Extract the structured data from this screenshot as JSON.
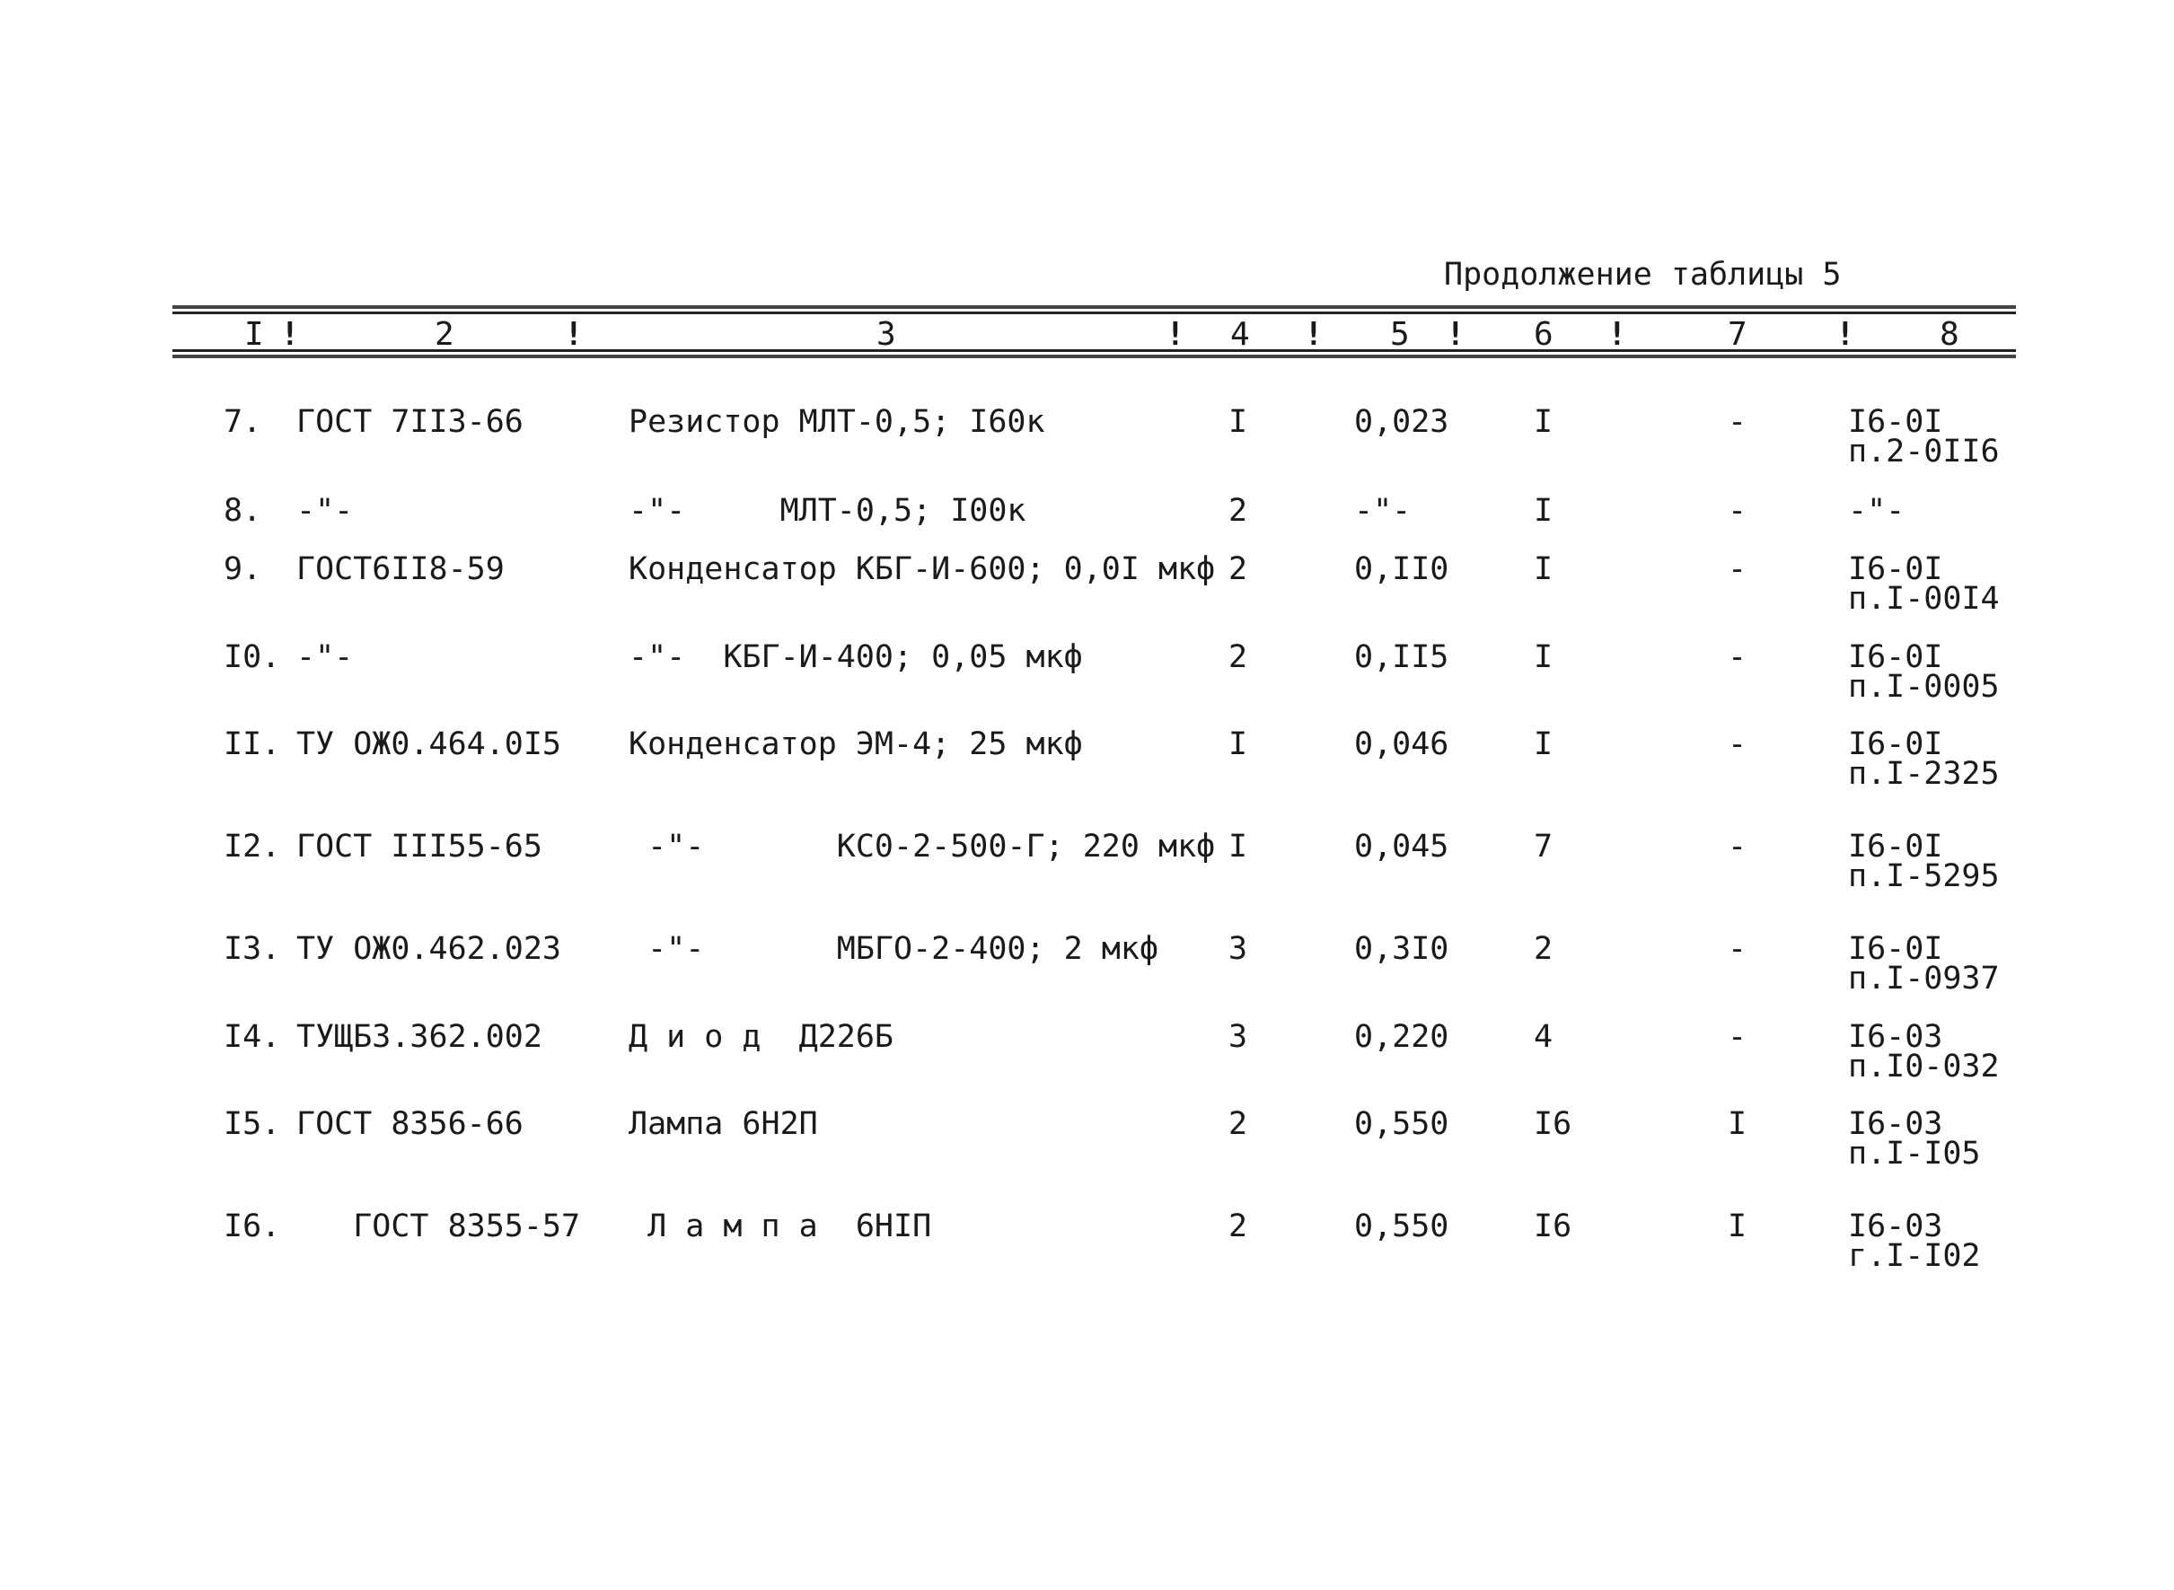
{
  "caption": "Продолжение таблицы 5",
  "header": {
    "columns": [
      "I",
      "2",
      "3",
      "4",
      "5",
      "6",
      "7",
      "8"
    ],
    "separator": "!"
  },
  "rows": [
    {
      "n": "7.",
      "doc": "ГОСТ 7II3-66",
      "name": "Резистор МЛТ-0,5; I60к",
      "qty": "I",
      "mass": "0,023",
      "c6": "I",
      "c7": "-",
      "ref1": "I6-0I",
      "ref2": "п.2-0II6"
    },
    {
      "n": "8.",
      "doc": "-\"-",
      "name": "-\"-     МЛТ-0,5; I00к",
      "qty": "2",
      "mass": "-\"-",
      "c6": "I",
      "c7": "-",
      "ref1": "-\"-",
      "ref2": ""
    },
    {
      "n": "9.",
      "doc": "ГОСТ6II8-59",
      "name": "Конденсатор КБГ-И-600; 0,0I мкф",
      "qty": "2",
      "mass": "0,II0",
      "c6": "I",
      "c7": "-",
      "ref1": "I6-0I",
      "ref2": "п.I-00I4"
    },
    {
      "n": "I0.",
      "doc": "-\"-",
      "name": "-\"-  КБГ-И-400; 0,05 мкф",
      "qty": "2",
      "mass": "0,II5",
      "c6": "I",
      "c7": "-",
      "ref1": "I6-0I",
      "ref2": "п.I-0005"
    },
    {
      "n": "II.",
      "doc": "ТУ ОЖ0.464.0I5",
      "name": "Конденсатор ЭМ-4; 25 мкф",
      "qty": "I",
      "mass": "0,046",
      "c6": "I",
      "c7": "-",
      "ref1": "I6-0I",
      "ref2": "п.I-2325"
    },
    {
      "n": "I2.",
      "doc": "ГОСТ III55-65",
      "name": " -\"-       КС0-2-500-Г; 220 мкф",
      "qty": "I",
      "mass": "0,045",
      "c6": "7",
      "c7": "-",
      "ref1": "I6-0I",
      "ref2": "п.I-5295"
    },
    {
      "n": "I3.",
      "doc": "ТУ ОЖ0.462.023",
      "name": " -\"-       МБГО-2-400; 2 мкф",
      "qty": "3",
      "mass": "0,3I0",
      "c6": "2",
      "c7": "-",
      "ref1": "I6-0I",
      "ref2": "п.I-0937"
    },
    {
      "n": "I4.",
      "doc": "ТУЩБЗ.362.002",
      "name": "Д и о д  Д226Б",
      "qty": "3",
      "mass": "0,220",
      "c6": "4",
      "c7": "-",
      "ref1": "I6-03",
      "ref2": "п.I0-032"
    },
    {
      "n": "I5.",
      "doc": "ГОСТ 8356-66",
      "name": "Лампа 6Н2П",
      "qty": "2",
      "mass": "0,550",
      "c6": "I6",
      "c7": "I",
      "ref1": "I6-03",
      "ref2": "п.I-I05"
    },
    {
      "n": "I6.",
      "doc": "   ГОСТ 8355-57",
      "name": " Л а м п а  6НІП",
      "qty": "2",
      "mass": "0,550",
      "c6": "I6",
      "c7": "I",
      "ref1": "I6-03",
      "ref2": "г.I-I02"
    }
  ]
}
